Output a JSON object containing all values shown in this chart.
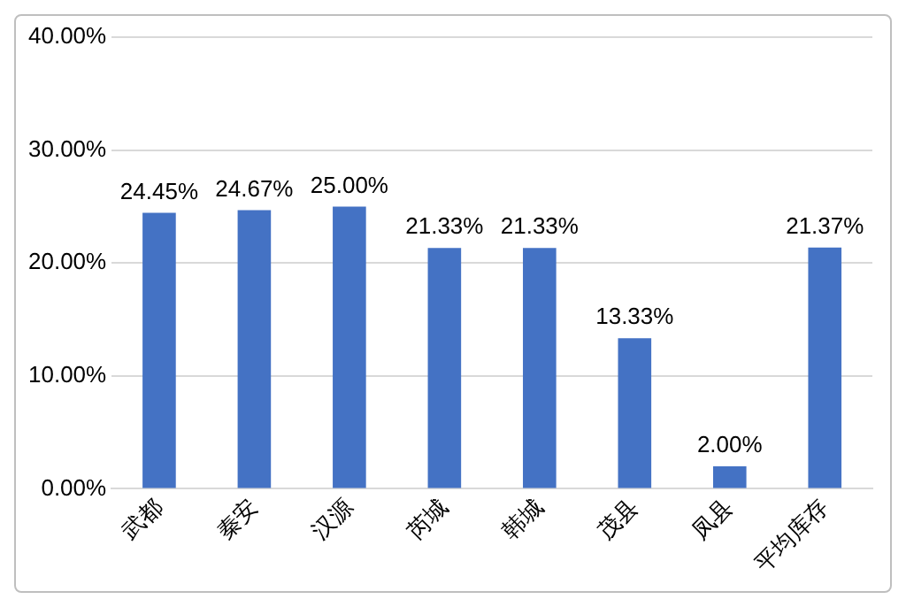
{
  "chart_data": {
    "type": "bar",
    "categories": [
      "武都",
      "秦安",
      "汉源",
      "芮城",
      "韩城",
      "茂县",
      "凤县",
      "平均库存"
    ],
    "values": [
      24.45,
      24.67,
      25.0,
      21.33,
      21.33,
      13.33,
      2.0,
      21.37
    ],
    "value_labels": [
      "24.45%",
      "24.67%",
      "25.00%",
      "21.33%",
      "21.33%",
      "13.33%",
      "2.00%",
      "21.37%"
    ],
    "color": "#4472c4",
    "ylim": [
      0,
      40
    ],
    "yticks": [
      {
        "value": 0,
        "label": "0.00%"
      },
      {
        "value": 10,
        "label": "10.00%"
      },
      {
        "value": 20,
        "label": "20.00%"
      },
      {
        "value": 30,
        "label": "30.00%"
      },
      {
        "value": 40,
        "label": "40.00%"
      }
    ],
    "grid": "y"
  }
}
